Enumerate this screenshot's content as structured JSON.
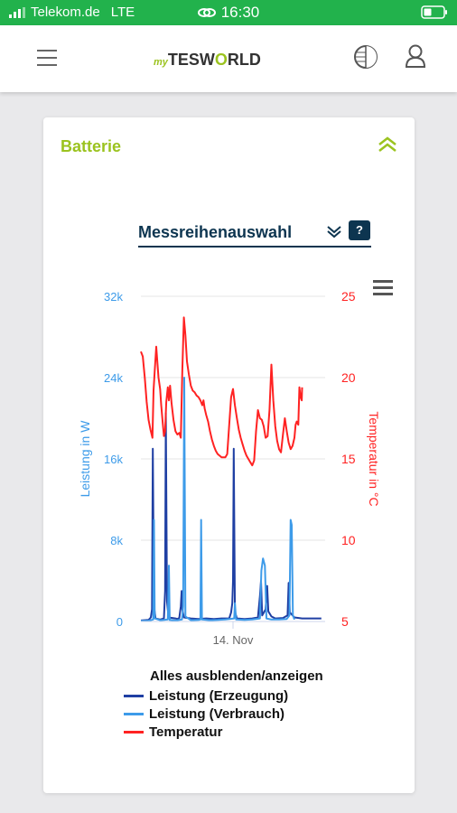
{
  "status_bar": {
    "carrier": "Telekom.de",
    "network": "LTE",
    "time": "16:30"
  },
  "app": {
    "logo_prefix": "my",
    "logo_main": "TESW",
    "logo_o": "O",
    "logo_suffix": "RLD"
  },
  "card": {
    "title": "Batterie",
    "series_select_label": "Messreihenauswahl",
    "help_label": "?"
  },
  "colors": {
    "status_green": "#22b24c",
    "brand_green": "#9bc31f",
    "navy": "#0d3550",
    "erzeugung": "#1f3fa3",
    "verbrauch": "#3d9be9",
    "temperatur": "#ff2222"
  },
  "chart_data": {
    "type": "line",
    "y_left": {
      "label": "Leistung in W",
      "ticks": [
        "0",
        "8k",
        "16k",
        "24k",
        "32k"
      ],
      "range": [
        0,
        32000
      ]
    },
    "y_right": {
      "label": "Temperatur in °C",
      "ticks": [
        "5",
        "10",
        "15",
        "20",
        "25"
      ],
      "range": [
        5,
        25
      ]
    },
    "x_tick_label": "14. Nov",
    "x_range_hours": [
      0,
      48
    ],
    "x_tick_hour": 24,
    "series": [
      {
        "name": "Leistung (Erzeugung)",
        "axis": "left",
        "points": [
          [
            0,
            100
          ],
          [
            2,
            150
          ],
          [
            2.6,
            400
          ],
          [
            2.9,
            1200
          ],
          [
            3.1,
            17000
          ],
          [
            3.4,
            1500
          ],
          [
            3.8,
            300
          ],
          [
            5,
            200
          ],
          [
            6,
            300
          ],
          [
            6.3,
            3000
          ],
          [
            6.5,
            20500
          ],
          [
            6.8,
            2000
          ],
          [
            7.2,
            400
          ],
          [
            9,
            300
          ],
          [
            9.5,
            250
          ],
          [
            10,
            350
          ],
          [
            10.4,
            1500
          ],
          [
            10.6,
            3000
          ],
          [
            10.8,
            1200
          ],
          [
            11.2,
            400
          ],
          [
            13,
            300
          ],
          [
            15,
            250
          ],
          [
            17,
            300
          ],
          [
            19,
            250
          ],
          [
            21,
            300
          ],
          [
            23,
            300
          ],
          [
            23.5,
            900
          ],
          [
            23.8,
            1800
          ],
          [
            24,
            4000
          ],
          [
            24.2,
            17000
          ],
          [
            24.5,
            1000
          ],
          [
            25,
            300
          ],
          [
            27,
            250
          ],
          [
            29,
            300
          ],
          [
            30.5,
            400
          ],
          [
            31,
            2500
          ],
          [
            31.3,
            4000
          ],
          [
            31.6,
            600
          ],
          [
            32.5,
            1200
          ],
          [
            32.9,
            3500
          ],
          [
            33.2,
            1000
          ],
          [
            34,
            500
          ],
          [
            35,
            300
          ],
          [
            37,
            350
          ],
          [
            38.2,
            600
          ],
          [
            38.5,
            3800
          ],
          [
            38.8,
            900
          ],
          [
            40,
            400
          ],
          [
            42,
            300
          ],
          [
            44,
            300
          ],
          [
            46,
            300
          ],
          [
            47,
            300
          ]
        ]
      },
      {
        "name": "Leistung (Verbrauch)",
        "axis": "left",
        "points": [
          [
            0,
            50
          ],
          [
            2,
            80
          ],
          [
            3.2,
            200
          ],
          [
            3.4,
            10000
          ],
          [
            3.6,
            300
          ],
          [
            5,
            120
          ],
          [
            6,
            150
          ],
          [
            7,
            200
          ],
          [
            7.3,
            5500
          ],
          [
            7.5,
            150
          ],
          [
            9,
            100
          ],
          [
            10.7,
            200
          ],
          [
            11,
            1500
          ],
          [
            11.3,
            24000
          ],
          [
            11.6,
            500
          ],
          [
            13,
            120
          ],
          [
            15,
            150
          ],
          [
            15.5,
            200
          ],
          [
            15.7,
            10000
          ],
          [
            15.9,
            200
          ],
          [
            18,
            120
          ],
          [
            20,
            150
          ],
          [
            22,
            200
          ],
          [
            24.3,
            300
          ],
          [
            24.5,
            1800
          ],
          [
            24.8,
            200
          ],
          [
            27,
            150
          ],
          [
            29,
            200
          ],
          [
            31,
            300
          ],
          [
            31.4,
            5000
          ],
          [
            31.8,
            6200
          ],
          [
            32.3,
            5500
          ],
          [
            32.7,
            300
          ],
          [
            34,
            200
          ],
          [
            36,
            200
          ],
          [
            38,
            250
          ],
          [
            38.7,
            600
          ],
          [
            39,
            10000
          ],
          [
            39.3,
            9500
          ],
          [
            39.6,
            600
          ],
          [
            40,
            200
          ]
        ]
      },
      {
        "name": "Temperatur",
        "axis": "right",
        "points": [
          [
            0,
            21.6
          ],
          [
            0.5,
            21.3
          ],
          [
            1,
            20
          ],
          [
            1.5,
            18.5
          ],
          [
            2,
            17.4
          ],
          [
            2.5,
            16.8
          ],
          [
            3,
            16.3
          ],
          [
            3.3,
            19.2
          ],
          [
            3.6,
            20.4
          ],
          [
            4,
            21.9
          ],
          [
            4.3,
            20.9
          ],
          [
            4.6,
            20
          ],
          [
            5,
            19.3
          ],
          [
            5.3,
            18.3
          ],
          [
            5.7,
            17.2
          ],
          [
            6,
            16.4
          ],
          [
            6.3,
            16.7
          ],
          [
            6.6,
            18.5
          ],
          [
            7,
            19.4
          ],
          [
            7.3,
            18.6
          ],
          [
            7.6,
            19.5
          ],
          [
            8,
            18.4
          ],
          [
            8.5,
            17.4
          ],
          [
            9,
            16.7
          ],
          [
            9.5,
            16.5
          ],
          [
            10,
            16.6
          ],
          [
            10.4,
            16.3
          ],
          [
            10.8,
            20.5
          ],
          [
            11.2,
            23.7
          ],
          [
            11.6,
            22.6
          ],
          [
            12,
            21
          ],
          [
            12.5,
            20.2
          ],
          [
            13,
            19.5
          ],
          [
            13.5,
            19.2
          ],
          [
            14,
            19.1
          ],
          [
            14.5,
            18.9
          ],
          [
            15,
            18.8
          ],
          [
            15.5,
            18.6
          ],
          [
            16,
            18.3
          ],
          [
            16.3,
            18.6
          ],
          [
            16.6,
            18.1
          ],
          [
            17,
            17.7
          ],
          [
            17.5,
            17.3
          ],
          [
            18,
            16.7
          ],
          [
            18.5,
            16.2
          ],
          [
            19,
            15.8
          ],
          [
            19.5,
            15.5
          ],
          [
            20,
            15.3
          ],
          [
            20.5,
            15.2
          ],
          [
            21,
            15.1
          ],
          [
            21.5,
            15.1
          ],
          [
            22,
            15.1
          ],
          [
            22.5,
            15.3
          ],
          [
            23,
            17.1
          ],
          [
            23.5,
            18.8
          ],
          [
            24,
            19.3
          ],
          [
            24.5,
            18.3
          ],
          [
            25,
            17.5
          ],
          [
            25.5,
            16.8
          ],
          [
            26,
            16.3
          ],
          [
            26.5,
            15.9
          ],
          [
            27,
            15.5
          ],
          [
            27.5,
            15.2
          ],
          [
            28,
            15
          ],
          [
            28.5,
            14.8
          ],
          [
            29,
            14.6
          ],
          [
            29.5,
            14.9
          ],
          [
            30,
            16.7
          ],
          [
            30.5,
            18
          ],
          [
            31,
            17.5
          ],
          [
            31.5,
            17.4
          ],
          [
            32,
            17
          ],
          [
            32.5,
            16.3
          ],
          [
            33,
            16.4
          ],
          [
            33.5,
            18
          ],
          [
            34,
            20.8
          ],
          [
            34.5,
            18.6
          ],
          [
            35,
            17
          ],
          [
            35.5,
            16.1
          ],
          [
            36,
            15.6
          ],
          [
            36.5,
            15.4
          ],
          [
            37,
            16.5
          ],
          [
            37.5,
            17.5
          ],
          [
            38,
            16.7
          ],
          [
            38.5,
            16
          ],
          [
            39,
            15.6
          ],
          [
            39.5,
            15.8
          ],
          [
            40,
            16.3
          ],
          [
            40.3,
            17.1
          ],
          [
            40.6,
            17.3
          ],
          [
            41,
            17.1
          ],
          [
            41.3,
            19.4
          ],
          [
            41.6,
            18.8
          ],
          [
            41.9,
            18.6
          ],
          [
            42,
            19.4
          ]
        ]
      }
    ]
  },
  "legend": {
    "title": "Alles ausblenden/anzeigen"
  }
}
